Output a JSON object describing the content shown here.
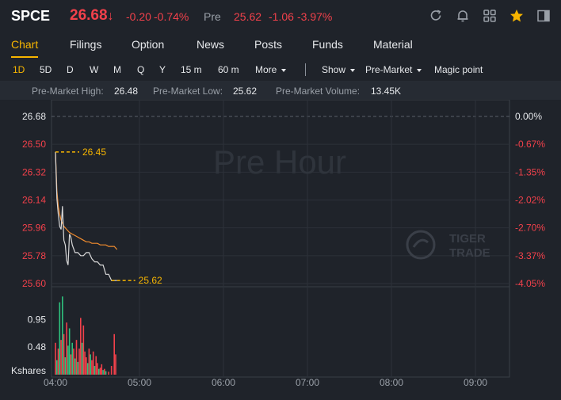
{
  "header": {
    "ticker": "SPCE",
    "price": "26.68",
    "price_arrow": "↓",
    "change": "-0.20",
    "change_pct": "-0.74%",
    "pre_label": "Pre",
    "pre_price": "25.62",
    "pre_change": "-1.06",
    "pre_change_pct": "-3.97%",
    "icons": [
      "refresh-icon",
      "bell-icon",
      "grid-icon",
      "star-icon",
      "panel-icon"
    ],
    "colors": {
      "down": "#f2414b",
      "accent": "#f7b500",
      "background": "#1f232a"
    }
  },
  "tabs": [
    {
      "label": "Chart",
      "active": true
    },
    {
      "label": "Filings"
    },
    {
      "label": "Option"
    },
    {
      "label": "News"
    },
    {
      "label": "Posts"
    },
    {
      "label": "Funds"
    },
    {
      "label": "Material"
    }
  ],
  "periods": {
    "items": [
      "1D",
      "5D",
      "D",
      "W",
      "M",
      "Q",
      "Y",
      "15 m",
      "60 m"
    ],
    "active": "1D",
    "more": "More",
    "show": "Show",
    "session": "Pre-Market",
    "magic": "Magic point"
  },
  "stats": {
    "high_label": "Pre-Market High:",
    "high_value": "26.48",
    "low_label": "Pre-Market Low:",
    "low_value": "25.62",
    "volume_label": "Pre-Market Volume:",
    "volume_value": "13.45K"
  },
  "watermark": "Pre Hour",
  "brand": {
    "line1": "TIGER",
    "line2": "TRADE"
  },
  "chart_data": {
    "type": "line",
    "y_ticks": [
      "26.68",
      "26.50",
      "26.32",
      "26.14",
      "25.96",
      "25.78",
      "25.60"
    ],
    "pct_ticks": [
      "0.00%",
      "-0.67%",
      "-1.35%",
      "-2.02%",
      "-2.70%",
      "-3.37%",
      "-4.05%"
    ],
    "x_ticks": [
      "04:00",
      "05:00",
      "06:00",
      "07:00",
      "08:00",
      "09:00"
    ],
    "ylim": [
      25.6,
      26.68
    ],
    "prev_close": 26.68,
    "high_marker": "26.45",
    "low_marker": "25.62",
    "high_value": 26.45,
    "low_value": 25.62,
    "series": [
      {
        "color": "#d9d9d9",
        "x": [
          "04:00",
          "04:01",
          "04:02",
          "04:03",
          "04:04",
          "04:05",
          "04:06",
          "04:07",
          "04:08",
          "04:09",
          "04:10",
          "04:11",
          "04:12",
          "04:14",
          "04:16",
          "04:18",
          "04:20",
          "04:22",
          "04:24",
          "04:26",
          "04:28",
          "04:30",
          "04:32",
          "04:34",
          "04:36",
          "04:38",
          "04:40",
          "04:42",
          "04:44"
        ],
        "values": [
          26.45,
          26.15,
          26.05,
          25.97,
          25.95,
          26.1,
          25.88,
          25.85,
          25.75,
          25.72,
          25.92,
          25.9,
          25.85,
          25.8,
          25.8,
          25.78,
          25.78,
          25.8,
          25.8,
          25.76,
          25.74,
          25.74,
          25.72,
          25.72,
          25.66,
          25.66,
          25.62,
          25.62,
          25.62
        ]
      },
      {
        "color": "#f28c2e",
        "x": [
          "04:00",
          "04:01",
          "04:02",
          "04:03",
          "04:04",
          "04:05",
          "04:06",
          "04:08",
          "04:10",
          "04:12",
          "04:14",
          "04:16",
          "04:18",
          "04:20",
          "04:22",
          "04:24",
          "04:26",
          "04:28",
          "04:30",
          "04:32",
          "04:34",
          "04:36",
          "04:38",
          "04:40",
          "04:42",
          "04:44"
        ],
        "values": [
          26.45,
          26.2,
          26.1,
          26.05,
          26.01,
          25.99,
          25.97,
          25.95,
          25.93,
          25.92,
          25.91,
          25.9,
          25.89,
          25.88,
          25.87,
          25.87,
          25.86,
          25.86,
          25.86,
          25.85,
          25.85,
          25.85,
          25.84,
          25.84,
          25.84,
          25.82
        ]
      }
    ],
    "volume": {
      "label": "Kshares",
      "ticks": [
        "0.95",
        "0.48"
      ],
      "ylim": [
        0,
        1.45
      ],
      "bars": [
        {
          "x": "04:00",
          "v": 0.55,
          "c": "r"
        },
        {
          "x": "04:01",
          "v": 0.25,
          "c": "g"
        },
        {
          "x": "04:02",
          "v": 0.45,
          "c": "r"
        },
        {
          "x": "04:03",
          "v": 1.25,
          "c": "g"
        },
        {
          "x": "04:04",
          "v": 0.6,
          "c": "r"
        },
        {
          "x": "04:05",
          "v": 1.35,
          "c": "g"
        },
        {
          "x": "04:06",
          "v": 0.7,
          "c": "r"
        },
        {
          "x": "04:07",
          "v": 0.3,
          "c": "g"
        },
        {
          "x": "04:08",
          "v": 0.9,
          "c": "r"
        },
        {
          "x": "04:09",
          "v": 0.5,
          "c": "g"
        },
        {
          "x": "04:10",
          "v": 0.8,
          "c": "g"
        },
        {
          "x": "04:11",
          "v": 0.35,
          "c": "r"
        },
        {
          "x": "04:12",
          "v": 0.55,
          "c": "g"
        },
        {
          "x": "04:13",
          "v": 0.45,
          "c": "r"
        },
        {
          "x": "04:14",
          "v": 0.28,
          "c": "g"
        },
        {
          "x": "04:15",
          "v": 0.6,
          "c": "r"
        },
        {
          "x": "04:16",
          "v": 0.22,
          "c": "g"
        },
        {
          "x": "04:17",
          "v": 0.45,
          "c": "r"
        },
        {
          "x": "04:18",
          "v": 0.98,
          "c": "r"
        },
        {
          "x": "04:19",
          "v": 0.55,
          "c": "g"
        },
        {
          "x": "04:20",
          "v": 0.85,
          "c": "r"
        },
        {
          "x": "04:21",
          "v": 0.4,
          "c": "r"
        },
        {
          "x": "04:22",
          "v": 0.3,
          "c": "r"
        },
        {
          "x": "04:23",
          "v": 0.2,
          "c": "g"
        },
        {
          "x": "04:24",
          "v": 0.45,
          "c": "r"
        },
        {
          "x": "04:25",
          "v": 0.35,
          "c": "g"
        },
        {
          "x": "04:26",
          "v": 0.25,
          "c": "r"
        },
        {
          "x": "04:27",
          "v": 0.4,
          "c": "r"
        },
        {
          "x": "04:28",
          "v": 0.15,
          "c": "g"
        },
        {
          "x": "04:29",
          "v": 0.32,
          "c": "r"
        },
        {
          "x": "04:30",
          "v": 0.2,
          "c": "r"
        },
        {
          "x": "04:31",
          "v": 0.1,
          "c": "g"
        },
        {
          "x": "04:32",
          "v": 0.12,
          "c": "r"
        },
        {
          "x": "04:33",
          "v": 0.18,
          "c": "r"
        },
        {
          "x": "04:34",
          "v": 0.08,
          "c": "g"
        },
        {
          "x": "04:35",
          "v": 0.1,
          "c": "r"
        },
        {
          "x": "04:36",
          "v": 0.06,
          "c": "g"
        },
        {
          "x": "04:38",
          "v": 0.05,
          "c": "r"
        },
        {
          "x": "04:40",
          "v": 0.15,
          "c": "r"
        },
        {
          "x": "04:42",
          "v": 0.7,
          "c": "r"
        },
        {
          "x": "04:43",
          "v": 0.35,
          "c": "r"
        }
      ]
    },
    "grid": true
  }
}
